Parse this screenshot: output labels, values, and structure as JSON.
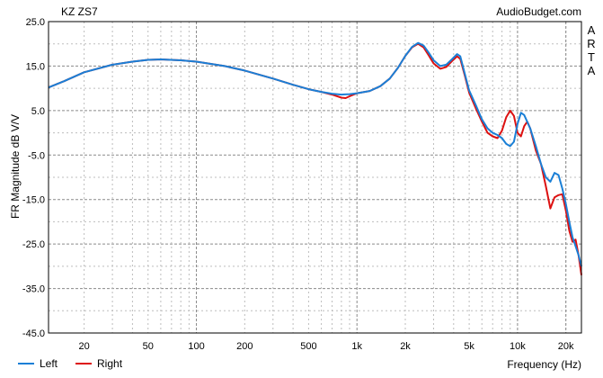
{
  "chart_data": {
    "type": "line",
    "title": "KZ ZS7",
    "brand": "AudioBudget.com",
    "watermark": "ARTA",
    "xlabel": "Frequency (Hz)",
    "ylabel": "FR Magnitude dB V/V",
    "x_scale": "log",
    "xlim": [
      12,
      25000
    ],
    "ylim": [
      -45,
      25
    ],
    "y_ticks": [
      "25.0",
      "15.0",
      "5.0",
      "-5.0",
      "-15.0",
      "-25.0",
      "-35.0",
      "-45.0"
    ],
    "y_tick_values": [
      25,
      15,
      5,
      -5,
      -15,
      -25,
      -35,
      -45
    ],
    "x_ticks": [
      "20",
      "50",
      "100",
      "200",
      "500",
      "1k",
      "2k",
      "5k",
      "10k",
      "20k"
    ],
    "x_tick_values": [
      20,
      50,
      100,
      200,
      500,
      1000,
      2000,
      5000,
      10000,
      20000
    ],
    "grid": true,
    "legend_position": "bottom-left",
    "colors": {
      "Left": "#1a7fd6",
      "Right": "#dd1111"
    },
    "series": [
      {
        "name": "Left",
        "points": [
          [
            12,
            10.2
          ],
          [
            15,
            11.6
          ],
          [
            20,
            13.6
          ],
          [
            30,
            15.3
          ],
          [
            40,
            16.0
          ],
          [
            50,
            16.4
          ],
          [
            60,
            16.5
          ],
          [
            80,
            16.3
          ],
          [
            100,
            16.0
          ],
          [
            150,
            15.0
          ],
          [
            200,
            14.0
          ],
          [
            300,
            12.2
          ],
          [
            400,
            10.8
          ],
          [
            500,
            9.8
          ],
          [
            600,
            9.2
          ],
          [
            700,
            8.8
          ],
          [
            800,
            8.6
          ],
          [
            900,
            8.7
          ],
          [
            1000,
            8.9
          ],
          [
            1200,
            9.4
          ],
          [
            1400,
            10.5
          ],
          [
            1600,
            12.2
          ],
          [
            1800,
            14.6
          ],
          [
            2000,
            17.3
          ],
          [
            2200,
            19.3
          ],
          [
            2400,
            20.2
          ],
          [
            2600,
            19.6
          ],
          [
            2800,
            18.0
          ],
          [
            3000,
            16.3
          ],
          [
            3300,
            15.0
          ],
          [
            3600,
            15.3
          ],
          [
            3900,
            16.5
          ],
          [
            4200,
            17.7
          ],
          [
            4400,
            17.2
          ],
          [
            4700,
            13.2
          ],
          [
            5000,
            9.5
          ],
          [
            5500,
            6.2
          ],
          [
            6000,
            3.0
          ],
          [
            6500,
            1.0
          ],
          [
            7000,
            0.0
          ],
          [
            7500,
            -0.5
          ],
          [
            8000,
            -1.2
          ],
          [
            8500,
            -2.5
          ],
          [
            9000,
            -3.0
          ],
          [
            9500,
            -2.0
          ],
          [
            10000,
            2.0
          ],
          [
            10500,
            4.5
          ],
          [
            11000,
            4.0
          ],
          [
            12000,
            1.0
          ],
          [
            13000,
            -3.0
          ],
          [
            14000,
            -7.0
          ],
          [
            15000,
            -10.0
          ],
          [
            16000,
            -11.0
          ],
          [
            17000,
            -9.0
          ],
          [
            18000,
            -9.5
          ],
          [
            19000,
            -12.5
          ],
          [
            20000,
            -16.0
          ],
          [
            21000,
            -20.0
          ],
          [
            22000,
            -23.5
          ],
          [
            23000,
            -25.5
          ],
          [
            24000,
            -27.5
          ],
          [
            25000,
            -30.0
          ]
        ]
      },
      {
        "name": "Right",
        "points": [
          [
            12,
            10.2
          ],
          [
            15,
            11.6
          ],
          [
            20,
            13.6
          ],
          [
            30,
            15.3
          ],
          [
            40,
            16.0
          ],
          [
            50,
            16.4
          ],
          [
            60,
            16.5
          ],
          [
            80,
            16.3
          ],
          [
            100,
            16.0
          ],
          [
            150,
            15.0
          ],
          [
            200,
            14.0
          ],
          [
            300,
            12.2
          ],
          [
            400,
            10.8
          ],
          [
            500,
            9.8
          ],
          [
            600,
            9.2
          ],
          [
            700,
            8.6
          ],
          [
            800,
            7.9
          ],
          [
            850,
            7.8
          ],
          [
            900,
            8.2
          ],
          [
            1000,
            8.9
          ],
          [
            1200,
            9.4
          ],
          [
            1400,
            10.5
          ],
          [
            1600,
            12.2
          ],
          [
            1800,
            14.6
          ],
          [
            2000,
            17.3
          ],
          [
            2200,
            19.2
          ],
          [
            2400,
            20.0
          ],
          [
            2600,
            19.2
          ],
          [
            2800,
            17.4
          ],
          [
            3000,
            15.6
          ],
          [
            3300,
            14.4
          ],
          [
            3600,
            14.8
          ],
          [
            3900,
            16.1
          ],
          [
            4200,
            17.2
          ],
          [
            4400,
            16.6
          ],
          [
            4700,
            12.8
          ],
          [
            5000,
            9.0
          ],
          [
            5500,
            5.5
          ],
          [
            6000,
            2.5
          ],
          [
            6500,
            0.0
          ],
          [
            7000,
            -0.8
          ],
          [
            7500,
            -1.2
          ],
          [
            8000,
            0.5
          ],
          [
            8500,
            3.5
          ],
          [
            9000,
            5.0
          ],
          [
            9500,
            3.8
          ],
          [
            10000,
            0.0
          ],
          [
            10500,
            -0.8
          ],
          [
            11000,
            1.5
          ],
          [
            11500,
            2.5
          ],
          [
            12000,
            1.0
          ],
          [
            13000,
            -4.0
          ],
          [
            14000,
            -7.0
          ],
          [
            15000,
            -12.0
          ],
          [
            16000,
            -17.0
          ],
          [
            17000,
            -14.5
          ],
          [
            18000,
            -14.0
          ],
          [
            19000,
            -13.8
          ],
          [
            20000,
            -17.5
          ],
          [
            21000,
            -22.0
          ],
          [
            22000,
            -24.5
          ],
          [
            23000,
            -24.0
          ],
          [
            24000,
            -27.5
          ],
          [
            25000,
            -32.0
          ]
        ]
      }
    ]
  }
}
